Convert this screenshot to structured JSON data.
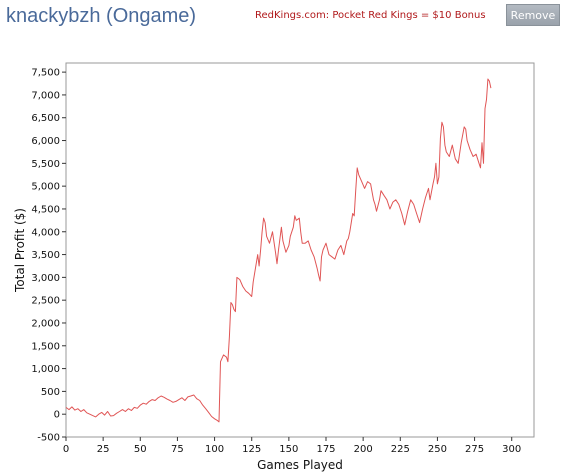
{
  "header": {
    "title": "knackybzh (Ongame)",
    "promo_link": "RedKings.com: Pocket Red Kings = $10 Bonus",
    "remove_label": "Remove"
  },
  "colors": {
    "title": "#4a6a9a",
    "promo": "#b0181a",
    "line": "#e05555",
    "grid": "#dddddd",
    "frame": "#999999"
  },
  "chart_data": {
    "type": "line",
    "title": "",
    "xlabel": "Games Played",
    "ylabel": "Total Profit ($)",
    "xlim": [
      0,
      315
    ],
    "ylim": [
      -500,
      7700
    ],
    "xticks": [
      0,
      25,
      50,
      75,
      100,
      125,
      150,
      175,
      200,
      225,
      250,
      275,
      300
    ],
    "yticks": [
      -500,
      0,
      500,
      1000,
      1500,
      2000,
      2500,
      3000,
      3500,
      4000,
      4500,
      5000,
      5500,
      6000,
      6500,
      7000,
      7500
    ],
    "grid": true,
    "series": [
      {
        "name": "",
        "points": [
          [
            0,
            150
          ],
          [
            2,
            100
          ],
          [
            4,
            160
          ],
          [
            6,
            90
          ],
          [
            8,
            120
          ],
          [
            10,
            60
          ],
          [
            12,
            100
          ],
          [
            14,
            30
          ],
          [
            16,
            0
          ],
          [
            18,
            -30
          ],
          [
            20,
            -60
          ],
          [
            22,
            0
          ],
          [
            24,
            40
          ],
          [
            26,
            -20
          ],
          [
            28,
            60
          ],
          [
            30,
            -40
          ],
          [
            32,
            -30
          ],
          [
            34,
            20
          ],
          [
            36,
            60
          ],
          [
            38,
            100
          ],
          [
            40,
            60
          ],
          [
            42,
            120
          ],
          [
            44,
            80
          ],
          [
            46,
            150
          ],
          [
            48,
            130
          ],
          [
            50,
            200
          ],
          [
            52,
            240
          ],
          [
            54,
            220
          ],
          [
            56,
            280
          ],
          [
            58,
            320
          ],
          [
            60,
            300
          ],
          [
            62,
            360
          ],
          [
            64,
            400
          ],
          [
            66,
            370
          ],
          [
            68,
            330
          ],
          [
            70,
            300
          ],
          [
            72,
            260
          ],
          [
            74,
            280
          ],
          [
            76,
            320
          ],
          [
            78,
            360
          ],
          [
            80,
            300
          ],
          [
            82,
            380
          ],
          [
            84,
            400
          ],
          [
            86,
            420
          ],
          [
            88,
            340
          ],
          [
            90,
            300
          ],
          [
            92,
            200
          ],
          [
            94,
            120
          ],
          [
            96,
            40
          ],
          [
            98,
            -50
          ],
          [
            100,
            -100
          ],
          [
            102,
            -140
          ],
          [
            103,
            -170
          ],
          [
            104,
            1150
          ],
          [
            106,
            1300
          ],
          [
            108,
            1250
          ],
          [
            109,
            1150
          ],
          [
            110,
            1700
          ],
          [
            111,
            2450
          ],
          [
            112,
            2400
          ],
          [
            113,
            2300
          ],
          [
            114,
            2250
          ],
          [
            115,
            3000
          ],
          [
            117,
            2950
          ],
          [
            119,
            2800
          ],
          [
            121,
            2700
          ],
          [
            123,
            2650
          ],
          [
            125,
            2580
          ],
          [
            126,
            2900
          ],
          [
            128,
            3300
          ],
          [
            129,
            3500
          ],
          [
            130,
            3250
          ],
          [
            131,
            3600
          ],
          [
            132,
            4000
          ],
          [
            133,
            4300
          ],
          [
            134,
            4200
          ],
          [
            135,
            3900
          ],
          [
            137,
            3750
          ],
          [
            139,
            4000
          ],
          [
            141,
            3550
          ],
          [
            142,
            3300
          ],
          [
            143,
            3600
          ],
          [
            145,
            4100
          ],
          [
            146,
            3800
          ],
          [
            148,
            3550
          ],
          [
            150,
            3700
          ],
          [
            151,
            3900
          ],
          [
            153,
            4100
          ],
          [
            154,
            4350
          ],
          [
            155,
            4250
          ],
          [
            157,
            4300
          ],
          [
            158,
            4000
          ],
          [
            159,
            3750
          ],
          [
            161,
            3750
          ],
          [
            163,
            3800
          ],
          [
            165,
            3600
          ],
          [
            167,
            3450
          ],
          [
            169,
            3200
          ],
          [
            170,
            3050
          ],
          [
            171,
            2920
          ],
          [
            172,
            3450
          ],
          [
            173,
            3600
          ],
          [
            175,
            3750
          ],
          [
            177,
            3500
          ],
          [
            179,
            3450
          ],
          [
            181,
            3400
          ],
          [
            183,
            3600
          ],
          [
            185,
            3700
          ],
          [
            187,
            3500
          ],
          [
            189,
            3800
          ],
          [
            190,
            3850
          ],
          [
            191,
            4000
          ],
          [
            193,
            4400
          ],
          [
            194,
            4350
          ],
          [
            195,
            4900
          ],
          [
            196,
            5400
          ],
          [
            197,
            5250
          ],
          [
            199,
            5100
          ],
          [
            201,
            4950
          ],
          [
            203,
            5100
          ],
          [
            205,
            5050
          ],
          [
            207,
            4700
          ],
          [
            208,
            4600
          ],
          [
            209,
            4450
          ],
          [
            211,
            4700
          ],
          [
            212,
            4900
          ],
          [
            214,
            4800
          ],
          [
            216,
            4700
          ],
          [
            218,
            4500
          ],
          [
            220,
            4650
          ],
          [
            222,
            4700
          ],
          [
            224,
            4600
          ],
          [
            226,
            4400
          ],
          [
            228,
            4150
          ],
          [
            230,
            4450
          ],
          [
            232,
            4700
          ],
          [
            234,
            4600
          ],
          [
            236,
            4400
          ],
          [
            238,
            4200
          ],
          [
            240,
            4500
          ],
          [
            242,
            4750
          ],
          [
            244,
            4950
          ],
          [
            245,
            4700
          ],
          [
            247,
            5050
          ],
          [
            248,
            5200
          ],
          [
            249,
            5500
          ],
          [
            250,
            5050
          ],
          [
            251,
            5200
          ],
          [
            252,
            6050
          ],
          [
            253,
            6400
          ],
          [
            254,
            6300
          ],
          [
            255,
            5900
          ],
          [
            256,
            5750
          ],
          [
            258,
            5650
          ],
          [
            260,
            5900
          ],
          [
            262,
            5600
          ],
          [
            264,
            5500
          ],
          [
            266,
            5950
          ],
          [
            268,
            6300
          ],
          [
            269,
            6250
          ],
          [
            270,
            6000
          ],
          [
            272,
            5800
          ],
          [
            274,
            5650
          ],
          [
            276,
            5700
          ],
          [
            278,
            5500
          ],
          [
            279,
            5400
          ],
          [
            280,
            5950
          ],
          [
            281,
            5500
          ],
          [
            282,
            6700
          ],
          [
            283,
            6900
          ],
          [
            284,
            7350
          ],
          [
            285,
            7300
          ],
          [
            286,
            7150
          ]
        ]
      }
    ]
  }
}
